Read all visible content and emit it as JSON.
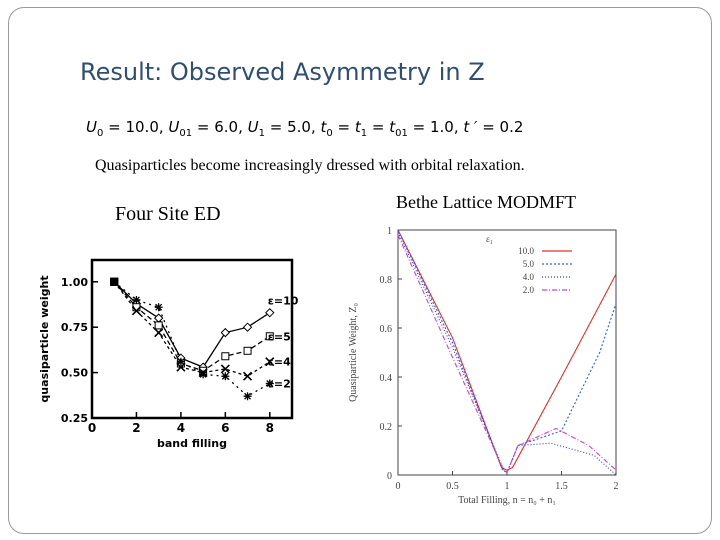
{
  "slide": {
    "title": "Result: Observed Asymmetry in Z",
    "params": {
      "U0_label": "U",
      "U0_sub": "0",
      "U0_value": " = 10.0, ",
      "U01_label": "U",
      "U01_sub": "01",
      "U01_value": " = 6.0, ",
      "U1_label": "U",
      "U1_sub": "1",
      "U1_value": " = 5.0, ",
      "t0_label": "t",
      "t0_sub": "0",
      "t0_eq": " = ",
      "t1_label": "t",
      "t1_sub": "1",
      "t1_eq": " = ",
      "t01_label": "t",
      "t01_sub": "01",
      "t01_value": " = 1.0, ",
      "tp_label": "t ′",
      "tp_value": "= 0.2"
    },
    "subtitle": "Quasiparticles become increasingly dressed with orbital relaxation.",
    "left_figure_label": "Four Site ED",
    "right_figure_label": "Bethe Lattice MODMFT"
  },
  "chart_data": [
    {
      "type": "line",
      "xlabel": "band filling",
      "ylabel": "quasiparticle weight",
      "xlim": [
        0,
        9
      ],
      "ylim": [
        0.25,
        1.12
      ],
      "xticks": [
        "0",
        "2",
        "4",
        "6",
        "8"
      ],
      "yticks": [
        "0.25",
        "0.50",
        "0.75",
        "1.00"
      ],
      "series": [
        {
          "name": "ε=10",
          "x": [
            1,
            2,
            3,
            4,
            5,
            6,
            7,
            8
          ],
          "y": [
            1.0,
            0.88,
            0.8,
            0.58,
            0.53,
            0.72,
            0.75,
            0.83
          ]
        },
        {
          "name": "ε=5",
          "x": [
            1,
            2,
            3,
            4,
            5,
            6,
            7,
            8
          ],
          "y": [
            1.0,
            0.86,
            0.76,
            0.55,
            0.51,
            0.59,
            0.62,
            0.7
          ]
        },
        {
          "name": "ε=4",
          "x": [
            1,
            2,
            3,
            4,
            5,
            6,
            7,
            8
          ],
          "y": [
            1.0,
            0.84,
            0.72,
            0.53,
            0.5,
            0.52,
            0.48,
            0.56
          ]
        },
        {
          "name": "ε=2",
          "x": [
            1,
            2,
            3,
            4,
            5,
            6,
            7,
            8
          ],
          "y": [
            1.0,
            0.9,
            0.86,
            0.56,
            0.49,
            0.48,
            0.37,
            0.44
          ]
        }
      ]
    },
    {
      "type": "line",
      "xlabel": "Total Filling, n = n₀ + n₁",
      "ylabel": "Quasiparticle Weight, Z₀",
      "xlim": [
        0,
        2
      ],
      "ylim": [
        0,
        1
      ],
      "xticks": [
        "0",
        "0.5",
        "1",
        "1.5",
        "2"
      ],
      "yticks": [
        "0",
        "0.2",
        "0.4",
        "0.6",
        "0.8",
        "1"
      ],
      "legend_title": "ε₁",
      "legend_position": "top-right",
      "series": [
        {
          "name": "10.0",
          "color": "#e03030",
          "x": [
            0,
            0.5,
            0.95,
            1.0,
            1.05,
            1.5,
            2.0
          ],
          "y": [
            1.0,
            0.56,
            0.03,
            0.02,
            0.03,
            0.4,
            0.82
          ]
        },
        {
          "name": "5.0",
          "color": "#3060d0",
          "x": [
            0,
            0.5,
            0.96,
            1.0,
            1.1,
            1.5,
            1.85,
            2.0
          ],
          "y": [
            1.0,
            0.54,
            0.02,
            0.01,
            0.12,
            0.18,
            0.5,
            0.7
          ]
        },
        {
          "name": "4.0",
          "color": "#3040c0",
          "x": [
            0,
            0.5,
            0.97,
            1.0,
            1.1,
            1.4,
            1.8,
            2.0
          ],
          "y": [
            0.99,
            0.52,
            0.02,
            0.01,
            0.12,
            0.13,
            0.08,
            0.0
          ]
        },
        {
          "name": "2.0",
          "color": "#d040d0",
          "x": [
            0,
            0.5,
            0.97,
            1.0,
            1.1,
            1.45,
            1.75,
            2.0
          ],
          "y": [
            0.98,
            0.48,
            0.02,
            0.01,
            0.12,
            0.19,
            0.12,
            0.02
          ]
        }
      ]
    }
  ]
}
